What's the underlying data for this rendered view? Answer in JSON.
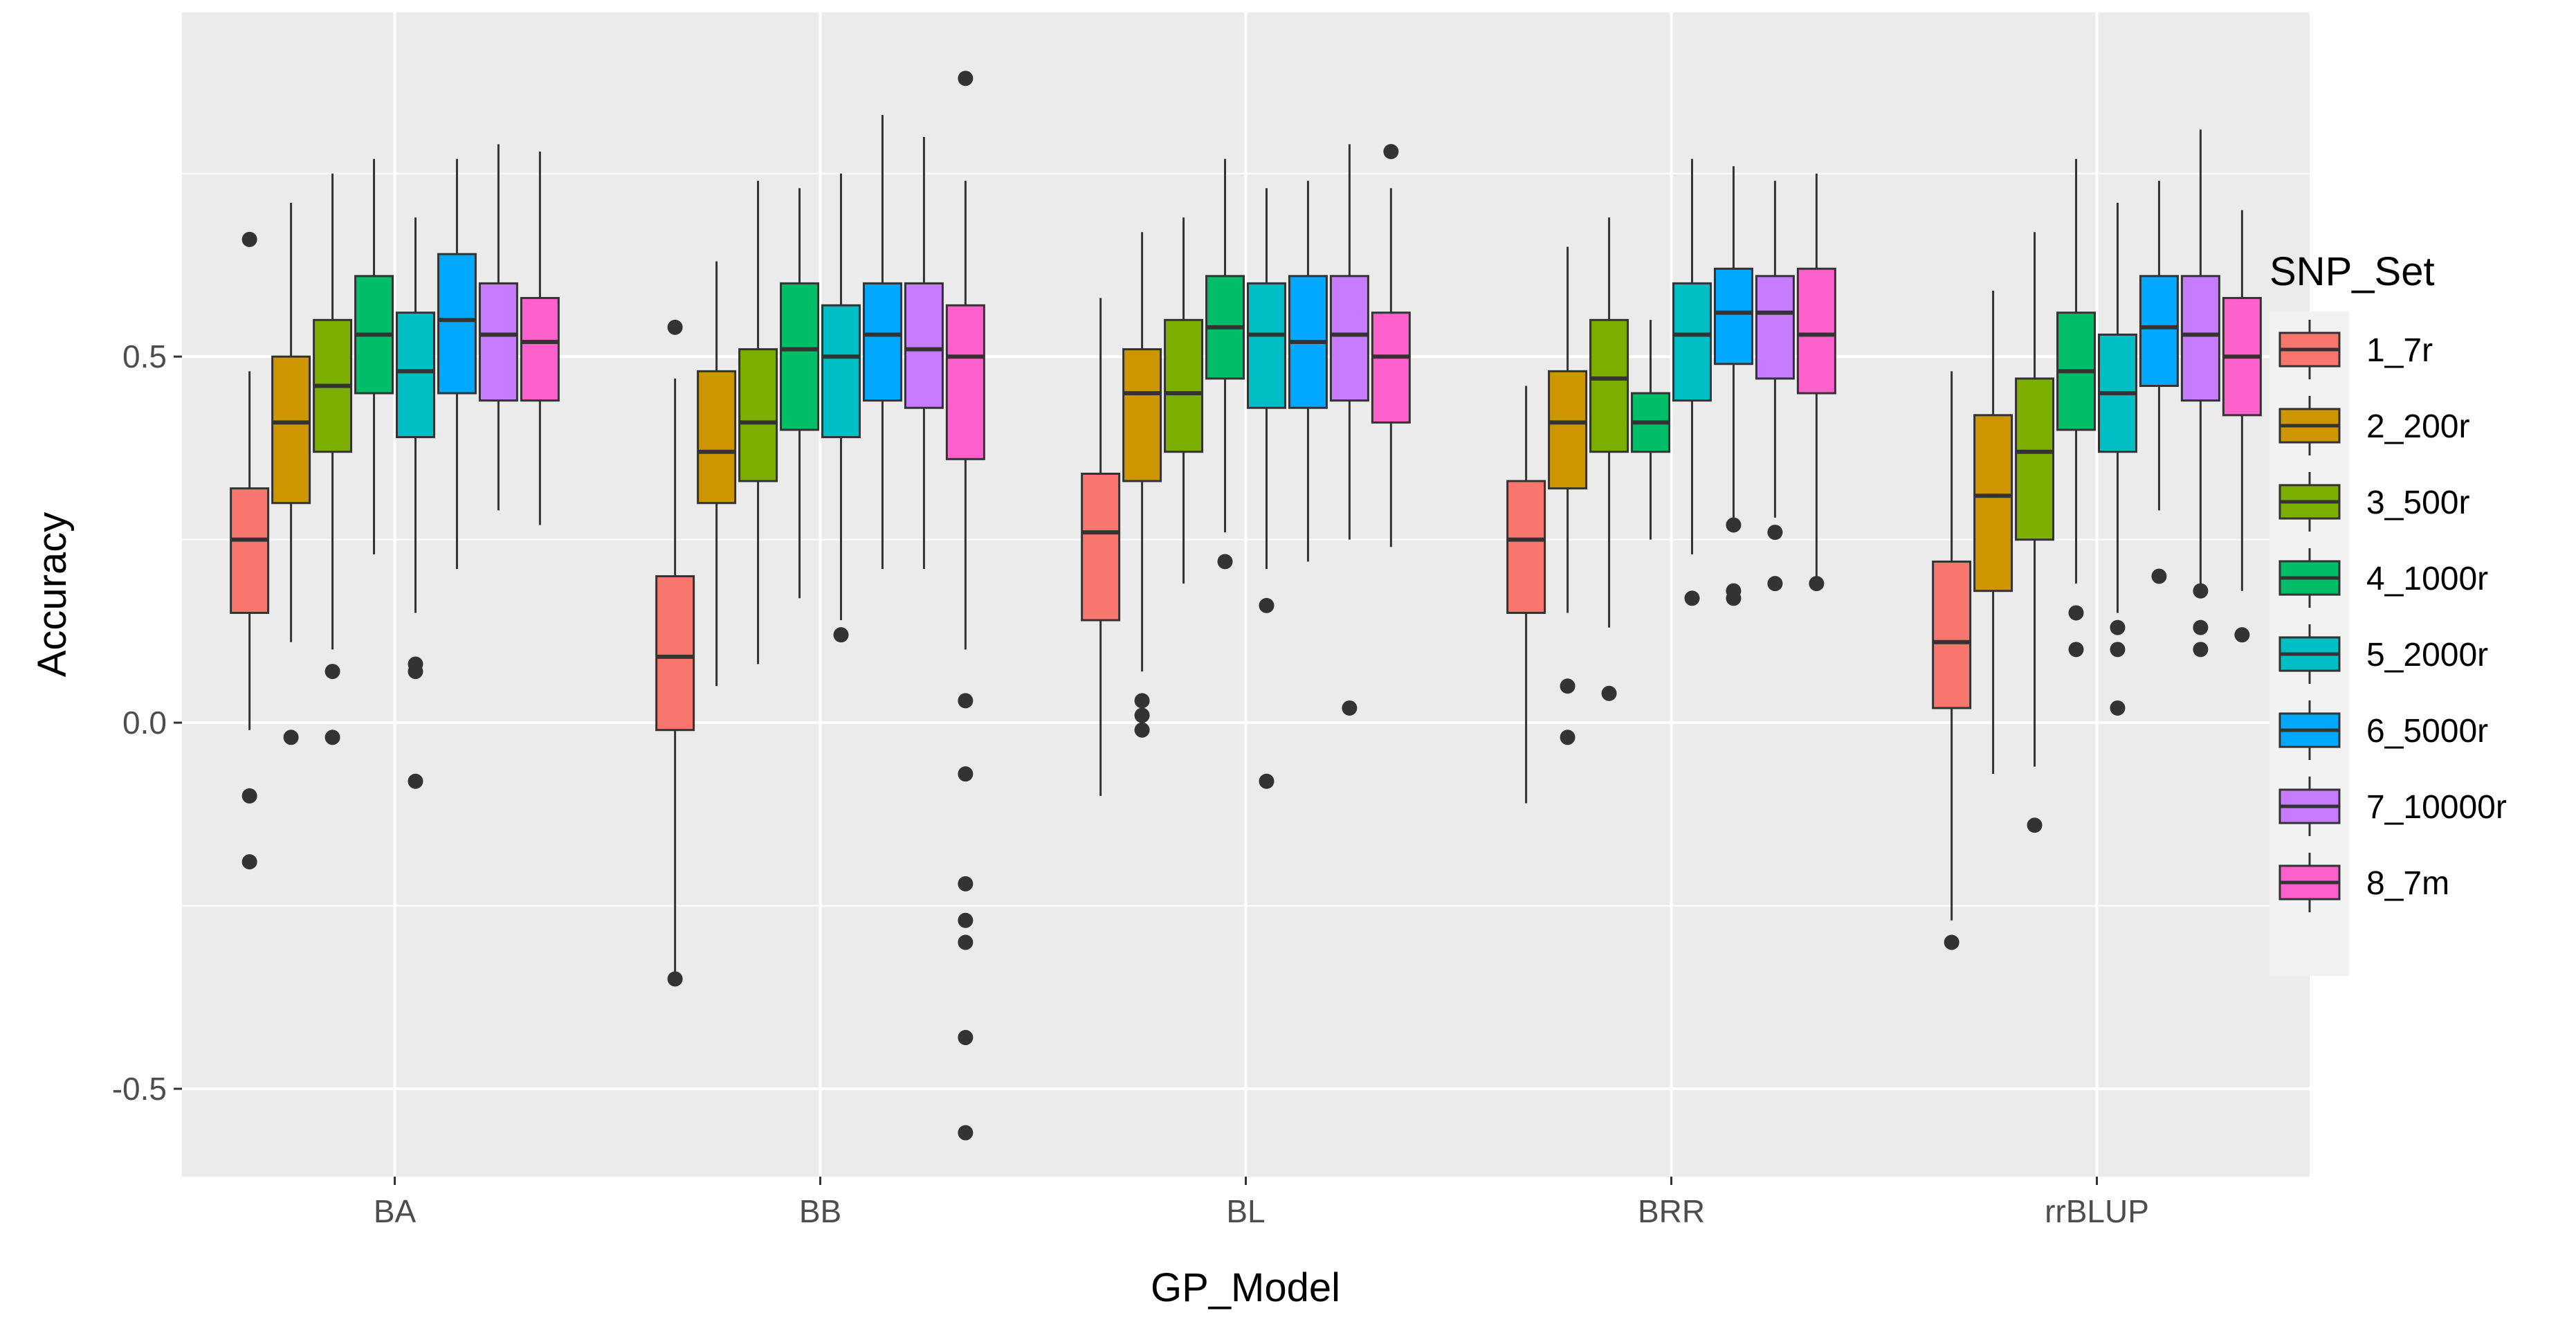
{
  "chart_data": {
    "type": "boxplot",
    "title": "",
    "xlabel": "GP_Model",
    "ylabel": "Accuracy",
    "ylim": [
      -0.62,
      0.97
    ],
    "yticks": [
      -0.5,
      0.0,
      0.5
    ],
    "ytick_labels": [
      "-0.5",
      "0.0",
      "0.5"
    ],
    "categories": [
      "BA",
      "BB",
      "BL",
      "BRR",
      "rrBLUP"
    ],
    "legend": {
      "title": "SNP_Set",
      "placement": "right",
      "entries": [
        "1_7r",
        "2_200r",
        "3_500r",
        "4_1000r",
        "5_2000r",
        "6_5000r",
        "7_10000r",
        "8_7m"
      ]
    },
    "colors": [
      "#F8766D",
      "#CD9600",
      "#7CAE00",
      "#00BE67",
      "#00BFC4",
      "#00A9FF",
      "#C77CFF",
      "#FF61CC"
    ],
    "groups": [
      {
        "model": "BA",
        "boxes": [
          {
            "set": "1_7r",
            "min": -0.01,
            "q1": 0.15,
            "median": 0.25,
            "q3": 0.32,
            "max": 0.48,
            "outliers": [
              0.66,
              -0.1,
              -0.19
            ]
          },
          {
            "set": "2_200r",
            "min": 0.11,
            "q1": 0.3,
            "median": 0.41,
            "q3": 0.5,
            "max": 0.71,
            "outliers": [
              -0.02
            ]
          },
          {
            "set": "3_500r",
            "min": 0.1,
            "q1": 0.37,
            "median": 0.46,
            "q3": 0.55,
            "max": 0.75,
            "outliers": [
              0.07,
              -0.02
            ]
          },
          {
            "set": "4_1000r",
            "min": 0.23,
            "q1": 0.45,
            "median": 0.53,
            "q3": 0.61,
            "max": 0.77,
            "outliers": []
          },
          {
            "set": "5_2000r",
            "min": 0.15,
            "q1": 0.39,
            "median": 0.48,
            "q3": 0.56,
            "max": 0.69,
            "outliers": [
              0.08,
              0.07,
              -0.08
            ]
          },
          {
            "set": "6_5000r",
            "min": 0.21,
            "q1": 0.45,
            "median": 0.55,
            "q3": 0.64,
            "max": 0.77,
            "outliers": []
          },
          {
            "set": "7_10000r",
            "min": 0.29,
            "q1": 0.44,
            "median": 0.53,
            "q3": 0.6,
            "max": 0.79,
            "outliers": []
          },
          {
            "set": "8_7m",
            "min": 0.27,
            "q1": 0.44,
            "median": 0.52,
            "q3": 0.58,
            "max": 0.78,
            "outliers": []
          }
        ]
      },
      {
        "model": "BB",
        "boxes": [
          {
            "set": "1_7r",
            "min": -0.34,
            "q1": -0.01,
            "median": 0.09,
            "q3": 0.2,
            "max": 0.47,
            "outliers": [
              0.54,
              -0.35
            ]
          },
          {
            "set": "2_200r",
            "min": 0.05,
            "q1": 0.3,
            "median": 0.37,
            "q3": 0.48,
            "max": 0.63,
            "outliers": []
          },
          {
            "set": "3_500r",
            "min": 0.08,
            "q1": 0.33,
            "median": 0.41,
            "q3": 0.51,
            "max": 0.74,
            "outliers": []
          },
          {
            "set": "4_1000r",
            "min": 0.17,
            "q1": 0.4,
            "median": 0.51,
            "q3": 0.6,
            "max": 0.73,
            "outliers": []
          },
          {
            "set": "5_2000r",
            "min": 0.14,
            "q1": 0.39,
            "median": 0.5,
            "q3": 0.57,
            "max": 0.75,
            "outliers": [
              0.12
            ]
          },
          {
            "set": "6_5000r",
            "min": 0.21,
            "q1": 0.44,
            "median": 0.53,
            "q3": 0.6,
            "max": 0.83,
            "outliers": []
          },
          {
            "set": "7_10000r",
            "min": 0.21,
            "q1": 0.43,
            "median": 0.51,
            "q3": 0.6,
            "max": 0.8,
            "outliers": []
          },
          {
            "set": "8_7m",
            "min": 0.1,
            "q1": 0.36,
            "median": 0.5,
            "q3": 0.57,
            "max": 0.74,
            "outliers": [
              0.88,
              0.03,
              -0.07,
              -0.22,
              -0.27,
              -0.3,
              -0.43,
              -0.56
            ]
          }
        ]
      },
      {
        "model": "BL",
        "boxes": [
          {
            "set": "1_7r",
            "min": -0.1,
            "q1": 0.14,
            "median": 0.26,
            "q3": 0.34,
            "max": 0.58,
            "outliers": []
          },
          {
            "set": "2_200r",
            "min": 0.07,
            "q1": 0.33,
            "median": 0.45,
            "q3": 0.51,
            "max": 0.67,
            "outliers": [
              0.03,
              0.01,
              -0.01
            ]
          },
          {
            "set": "3_500r",
            "min": 0.19,
            "q1": 0.37,
            "median": 0.45,
            "q3": 0.55,
            "max": 0.69,
            "outliers": []
          },
          {
            "set": "4_1000r",
            "min": 0.26,
            "q1": 0.47,
            "median": 0.54,
            "q3": 0.61,
            "max": 0.77,
            "outliers": [
              0.22
            ]
          },
          {
            "set": "5_2000r",
            "min": 0.21,
            "q1": 0.43,
            "median": 0.53,
            "q3": 0.6,
            "max": 0.73,
            "outliers": [
              0.16,
              -0.08
            ]
          },
          {
            "set": "6_5000r",
            "min": 0.22,
            "q1": 0.43,
            "median": 0.52,
            "q3": 0.61,
            "max": 0.74,
            "outliers": []
          },
          {
            "set": "7_10000r",
            "min": 0.25,
            "q1": 0.44,
            "median": 0.53,
            "q3": 0.61,
            "max": 0.79,
            "outliers": [
              0.02
            ]
          },
          {
            "set": "8_7m",
            "min": 0.24,
            "q1": 0.41,
            "median": 0.5,
            "q3": 0.56,
            "max": 0.73,
            "outliers": [
              0.78
            ]
          }
        ]
      },
      {
        "model": "BRR",
        "boxes": [
          {
            "set": "1_7r",
            "min": -0.11,
            "q1": 0.15,
            "median": 0.25,
            "q3": 0.33,
            "max": 0.46,
            "outliers": []
          },
          {
            "set": "2_200r",
            "min": 0.15,
            "q1": 0.32,
            "median": 0.41,
            "q3": 0.48,
            "max": 0.65,
            "outliers": [
              0.05,
              -0.02
            ]
          },
          {
            "set": "3_500r",
            "min": 0.13,
            "q1": 0.37,
            "median": 0.47,
            "q3": 0.55,
            "max": 0.69,
            "outliers": [
              0.04
            ]
          },
          {
            "set": "4_1000r",
            "min": 0.25,
            "q1": 0.37,
            "median": 0.41,
            "q3": 0.45,
            "max": 0.55,
            "outliers": []
          },
          {
            "set": "5_2000r",
            "min": 0.23,
            "q1": 0.44,
            "median": 0.53,
            "q3": 0.6,
            "max": 0.77,
            "outliers": [
              0.17
            ]
          },
          {
            "set": "6_5000r",
            "min": 0.28,
            "q1": 0.49,
            "median": 0.56,
            "q3": 0.62,
            "max": 0.76,
            "outliers": [
              0.27,
              0.18,
              0.17
            ]
          },
          {
            "set": "7_10000r",
            "min": 0.28,
            "q1": 0.47,
            "median": 0.56,
            "q3": 0.61,
            "max": 0.74,
            "outliers": [
              0.26,
              0.19
            ]
          },
          {
            "set": "8_7m",
            "min": 0.2,
            "q1": 0.45,
            "median": 0.53,
            "q3": 0.62,
            "max": 0.75,
            "outliers": [
              0.19
            ]
          }
        ]
      },
      {
        "model": "rrBLUP",
        "boxes": [
          {
            "set": "1_7r",
            "min": -0.27,
            "q1": 0.02,
            "median": 0.11,
            "q3": 0.22,
            "max": 0.48,
            "outliers": [
              -0.3
            ]
          },
          {
            "set": "2_200r",
            "min": -0.07,
            "q1": 0.18,
            "median": 0.31,
            "q3": 0.42,
            "max": 0.59,
            "outliers": []
          },
          {
            "set": "3_500r",
            "min": -0.06,
            "q1": 0.25,
            "median": 0.37,
            "q3": 0.47,
            "max": 0.67,
            "outliers": [
              -0.14
            ]
          },
          {
            "set": "4_1000r",
            "min": 0.19,
            "q1": 0.4,
            "median": 0.48,
            "q3": 0.56,
            "max": 0.77,
            "outliers": [
              0.15,
              0.1
            ]
          },
          {
            "set": "5_2000r",
            "min": 0.15,
            "q1": 0.37,
            "median": 0.45,
            "q3": 0.53,
            "max": 0.71,
            "outliers": [
              0.13,
              0.1,
              0.02
            ]
          },
          {
            "set": "6_5000r",
            "min": 0.29,
            "q1": 0.46,
            "median": 0.54,
            "q3": 0.61,
            "max": 0.74,
            "outliers": [
              0.2
            ]
          },
          {
            "set": "7_10000r",
            "min": 0.19,
            "q1": 0.44,
            "median": 0.53,
            "q3": 0.61,
            "max": 0.81,
            "outliers": [
              0.18,
              0.13,
              0.1
            ]
          },
          {
            "set": "8_7m",
            "min": 0.18,
            "q1": 0.42,
            "median": 0.5,
            "q3": 0.58,
            "max": 0.7,
            "outliers": [
              0.12
            ]
          }
        ]
      }
    ]
  }
}
